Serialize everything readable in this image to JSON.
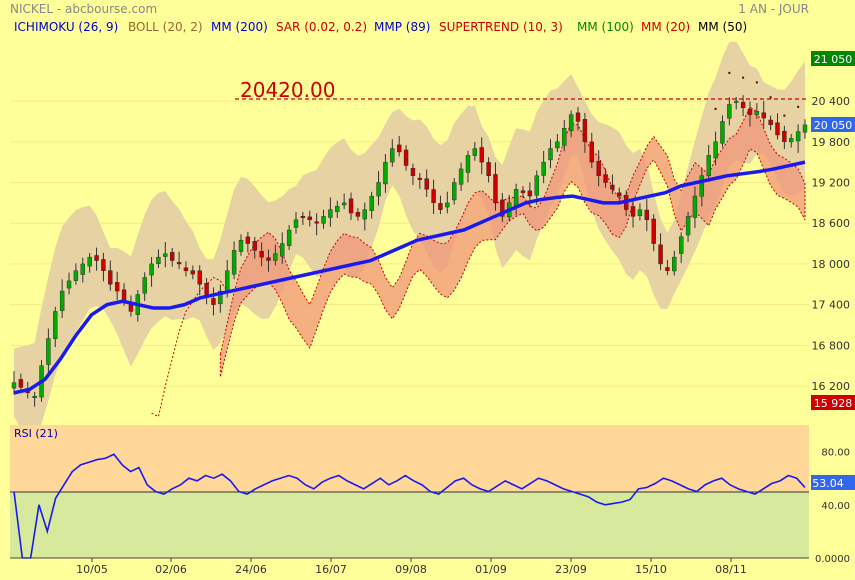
{
  "header": {
    "title": "NICKEL - abcbourse.com",
    "period": "1 AN - JOUR"
  },
  "legend": [
    {
      "label": "ICHIMOKU (26, 9)",
      "color": "#0000cc"
    },
    {
      "label": "BOLL (20, 2)",
      "color": "#996633"
    },
    {
      "label": "MM (200)",
      "color": "#0000cc"
    },
    {
      "label": "SAR (0.02, 0.2)",
      "color": "#cc0000"
    },
    {
      "label": "MMP (89)",
      "color": "#0000cc"
    },
    {
      "label": "SUPERTREND (10, 3)",
      "color": "#cc0000"
    },
    {
      "label": "MM (100)",
      "color": "#008800"
    },
    {
      "label": "MM (20)",
      "color": "#cc0000"
    },
    {
      "label": "MM (50)",
      "color": "#000000"
    }
  ],
  "hline_label": "20420.00",
  "price_badges": {
    "high": "21 050",
    "last": "20 050",
    "low": "15 928"
  },
  "rsi": {
    "label": "RSI (21)",
    "badge": "53.04"
  },
  "chart_data": [
    {
      "type": "candlestick",
      "title": "NICKEL",
      "y_ticks": [
        "20 400",
        "19 800",
        "19 200",
        "18 600",
        "18 000",
        "17 400",
        "16 800",
        "16 200"
      ],
      "ylim": [
        15700,
        21300
      ],
      "x_ticks": [
        "10/05",
        "02/06",
        "24/06",
        "16/07",
        "09/08",
        "01/09",
        "23/09",
        "15/10",
        "08/11"
      ],
      "horizontal_line": 20420,
      "close_approx": [
        16250,
        16180,
        16100,
        16050,
        16500,
        16900,
        17300,
        17600,
        17750,
        17900,
        18000,
        18100,
        18050,
        17900,
        17700,
        17600,
        17450,
        17300,
        17550,
        17800,
        18000,
        18100,
        18150,
        18050,
        18000,
        17900,
        17850,
        17700,
        17500,
        17400,
        17600,
        17900,
        18200,
        18350,
        18300,
        18200,
        18100,
        18050,
        18150,
        18300,
        18500,
        18650,
        18700,
        18650,
        18600,
        18700,
        18800,
        18850,
        18900,
        18750,
        18700,
        18800,
        19000,
        19200,
        19500,
        19700,
        19650,
        19450,
        19300,
        19250,
        19100,
        18900,
        18800,
        18900,
        19200,
        19400,
        19600,
        19700,
        19500,
        19300,
        18900,
        18700,
        18900,
        19100,
        19050,
        19000,
        19300,
        19500,
        19700,
        19800,
        20000,
        20200,
        20100,
        19800,
        19500,
        19300,
        19200,
        19100,
        19000,
        18800,
        18700,
        18800,
        18650,
        18300,
        18000,
        17900,
        18100,
        18400,
        18700,
        19000,
        19300,
        19600,
        19800,
        20100,
        20350,
        20400,
        20300,
        20200,
        20250,
        20150,
        20050,
        19900,
        19800,
        19850,
        19950,
        20050
      ],
      "ma_200_approx": [
        16100,
        16150,
        16300,
        16600,
        16950,
        17250,
        17400,
        17450,
        17400,
        17350,
        17350,
        17400,
        17500,
        17550,
        17600,
        17650,
        17700,
        17750,
        17800,
        17850,
        17900,
        17950,
        18000,
        18050,
        18150,
        18250,
        18350,
        18400,
        18450,
        18500,
        18600,
        18700,
        18800,
        18900,
        18950,
        18980,
        19000,
        18950,
        18900,
        18900,
        18950,
        19000,
        19050,
        19150,
        19200,
        19250,
        19300,
        19330,
        19360,
        19400,
        19450,
        19500
      ]
    },
    {
      "type": "line",
      "title": "RSI (21)",
      "y_ticks": [
        "80.00",
        "40.00",
        "0.0000"
      ],
      "ylim": [
        0,
        100
      ],
      "reference_line": 50,
      "values": [
        50,
        0,
        0,
        40,
        20,
        45,
        55,
        65,
        70,
        72,
        74,
        75,
        78,
        70,
        65,
        68,
        55,
        50,
        48,
        52,
        55,
        60,
        58,
        62,
        60,
        63,
        58,
        50,
        48,
        52,
        55,
        58,
        60,
        62,
        60,
        55,
        52,
        57,
        60,
        62,
        58,
        55,
        52,
        56,
        60,
        55,
        58,
        62,
        58,
        55,
        50,
        48,
        53,
        58,
        60,
        55,
        52,
        50,
        54,
        58,
        55,
        52,
        56,
        60,
        58,
        55,
        52,
        50,
        48,
        46,
        42,
        40,
        41,
        42,
        44,
        52,
        53,
        56,
        60,
        58,
        55,
        52,
        50,
        55,
        58,
        60,
        55,
        52,
        50,
        48,
        52,
        56,
        58,
        62,
        60,
        53
      ]
    }
  ]
}
